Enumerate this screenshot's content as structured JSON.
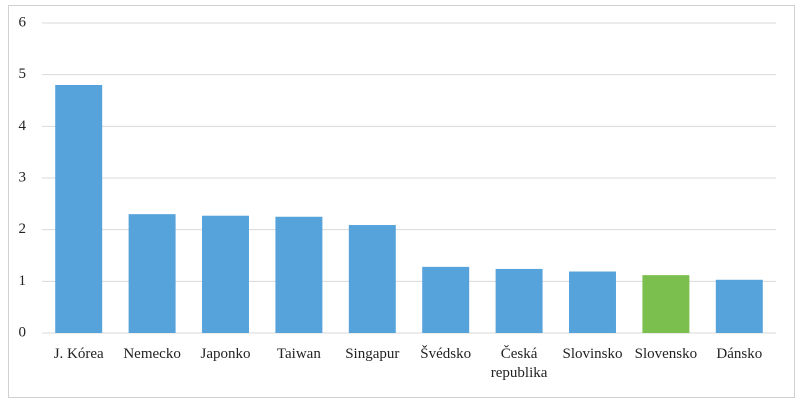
{
  "chart_data": {
    "type": "bar",
    "categories": [
      "J. Kórea",
      "Nemecko",
      "Japonko",
      "Taiwan",
      "Singapur",
      "Švédsko",
      "Česká republika",
      "Slovinsko",
      "Slovensko",
      "Dánsko"
    ],
    "values": [
      4.8,
      2.3,
      2.27,
      2.25,
      2.09,
      1.28,
      1.24,
      1.19,
      1.12,
      1.03
    ],
    "colors": [
      "#56a3dc",
      "#56a3dc",
      "#56a3dc",
      "#56a3dc",
      "#56a3dc",
      "#56a3dc",
      "#56a3dc",
      "#56a3dc",
      "#7bbf4e",
      "#56a3dc"
    ],
    "ylim": [
      0,
      6
    ],
    "yticks": [
      0,
      1,
      2,
      3,
      4,
      5,
      6
    ],
    "grid": true
  }
}
